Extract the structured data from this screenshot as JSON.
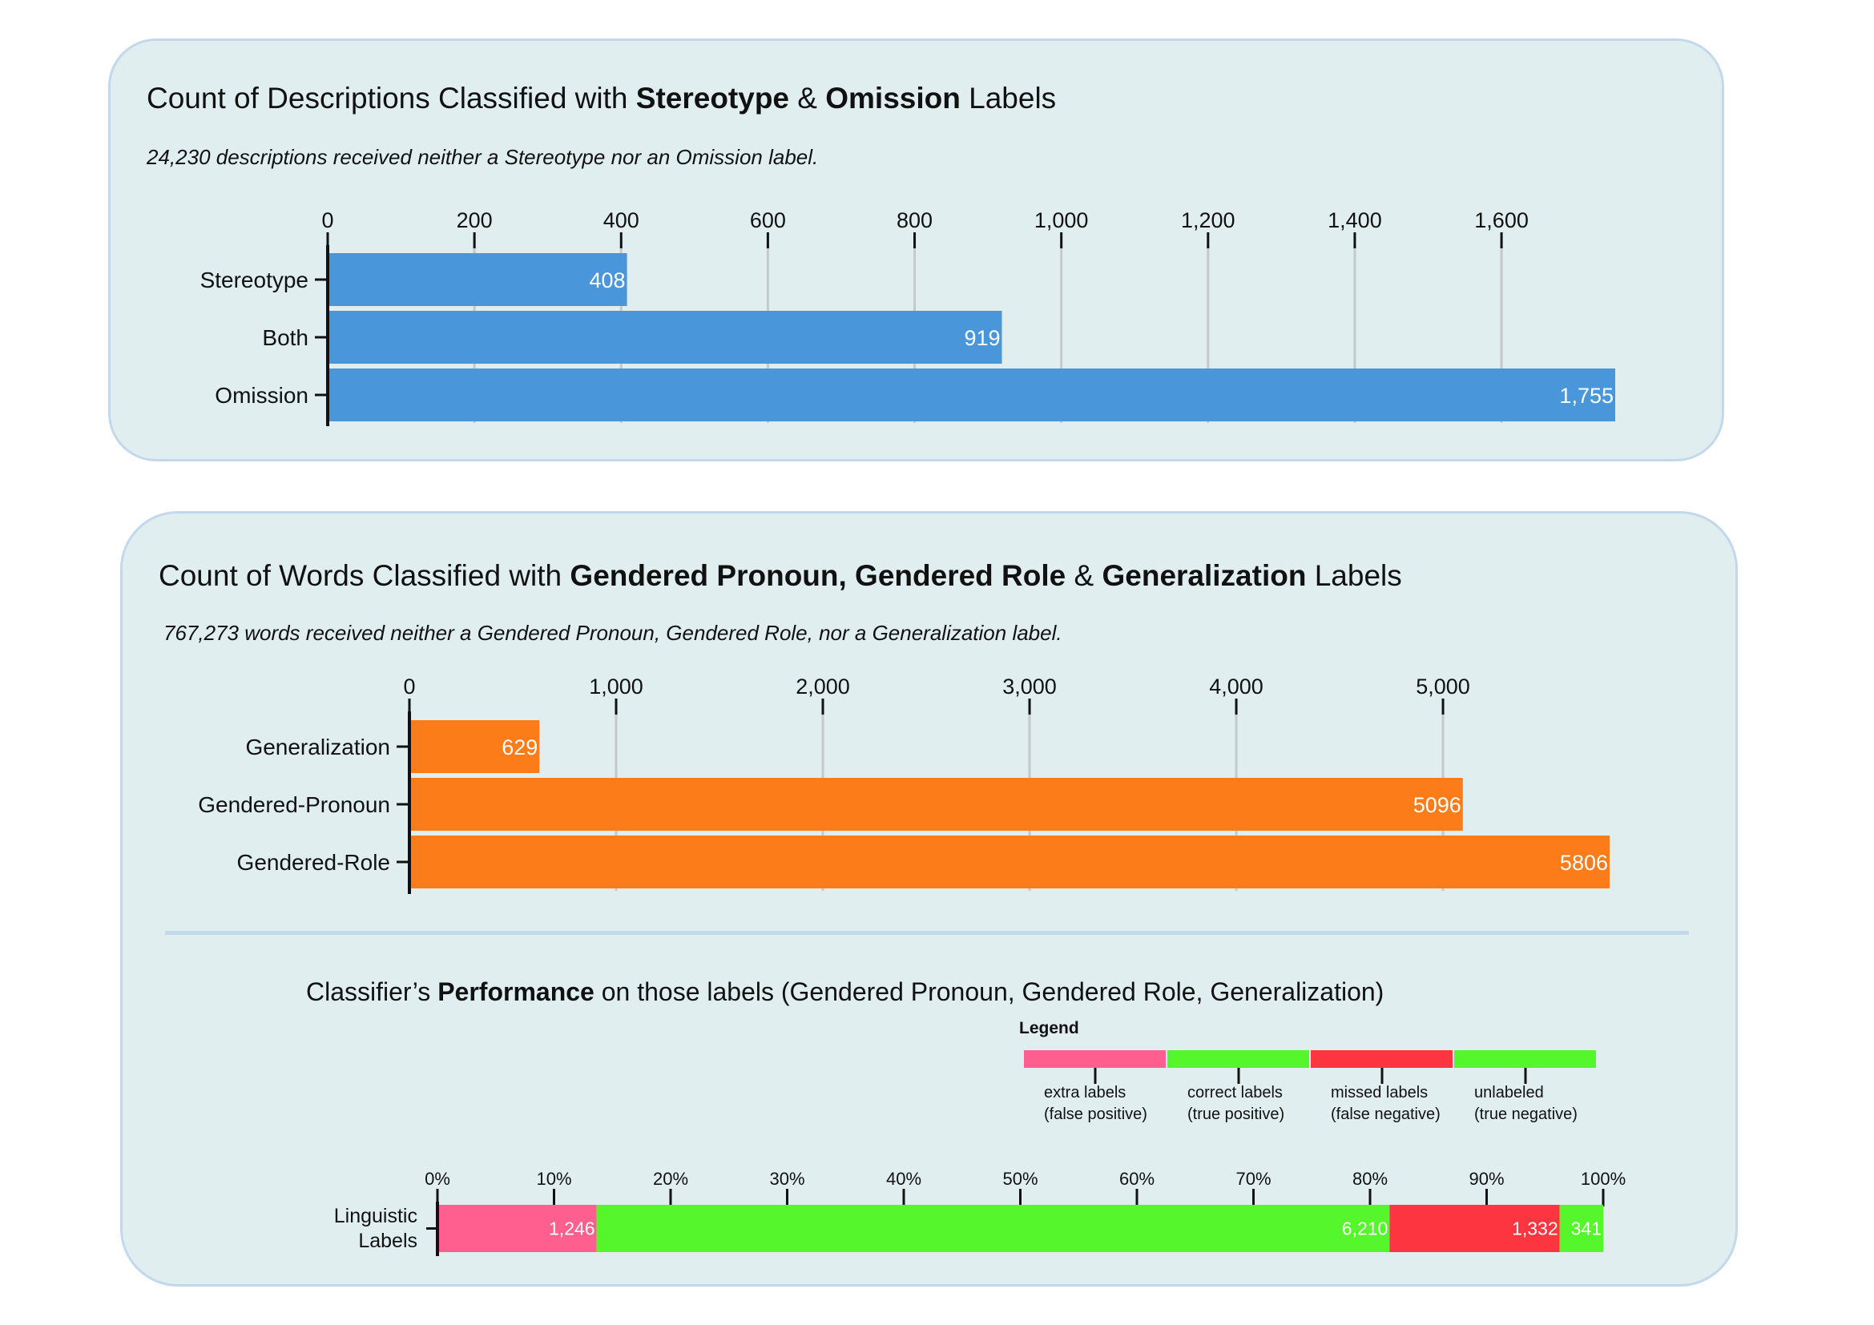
{
  "chart_data": [
    {
      "type": "bar",
      "orientation": "horizontal",
      "title_parts": [
        {
          "text": "Count of Descriptions Classified with ",
          "bold": false
        },
        {
          "text": "Stereotype",
          "bold": true
        },
        {
          "text": " & ",
          "bold": false
        },
        {
          "text": "Omission",
          "bold": true
        },
        {
          "text": " Labels",
          "bold": false
        }
      ],
      "subtitle": "24,230 descriptions received neither a Stereotype nor an Omission label.",
      "categories": [
        "Stereotype",
        "Both",
        "Omission"
      ],
      "values": [
        408,
        919,
        1755
      ],
      "value_labels": [
        "408",
        "919",
        "1,755"
      ],
      "xticks": [
        0,
        200,
        400,
        600,
        800,
        1000,
        1200,
        1400,
        1600
      ],
      "xtick_labels": [
        "0",
        "200",
        "400",
        "600",
        "800",
        "1,000",
        "1,200",
        "1,400",
        "1,600"
      ],
      "xlim": [
        0,
        1755
      ],
      "color": "#4a96db",
      "grid": true
    },
    {
      "type": "bar",
      "orientation": "horizontal",
      "title_parts": [
        {
          "text": "Count of Words Classified with ",
          "bold": false
        },
        {
          "text": "Gendered Pronoun, Gendered Role",
          "bold": true
        },
        {
          "text": " & ",
          "bold": false
        },
        {
          "text": "Generalization",
          "bold": true
        },
        {
          "text": " Labels",
          "bold": false
        }
      ],
      "subtitle": "767,273 words received neither a Gendered Pronoun, Gendered Role, nor a Generalization label.",
      "categories": [
        "Generalization",
        "Gendered-Pronoun",
        "Gendered-Role"
      ],
      "values": [
        629,
        5096,
        5806
      ],
      "value_labels": [
        "629",
        "5096",
        "5806"
      ],
      "xticks": [
        0,
        1000,
        2000,
        3000,
        4000,
        5000
      ],
      "xtick_labels": [
        "0",
        "1,000",
        "2,000",
        "3,000",
        "4,000",
        "5,000"
      ],
      "xlim": [
        0,
        5806
      ],
      "color": "#fb7c19",
      "grid": true
    },
    {
      "type": "stacked-bar",
      "orientation": "horizontal",
      "title_parts": [
        {
          "text": "Classifier’s ",
          "bold": false
        },
        {
          "text": "Performance",
          "bold": true
        },
        {
          "text": " on those labels (Gendered Pronoun, Gendered Role, Generalization)",
          "bold": false
        }
      ],
      "category_lines": [
        "Linguistic",
        "Labels"
      ],
      "series": [
        {
          "name": "extra labels (false positive)",
          "value": 1246,
          "label": "1,246",
          "color": "#ff5f8e"
        },
        {
          "name": "correct labels (true positive)",
          "value": 6210,
          "label": "6,210",
          "color": "#55f72c"
        },
        {
          "name": "missed labels (false negative)",
          "value": 1332,
          "label": "1,332",
          "color": "#fc3540"
        },
        {
          "name": "unlabeled (true negative)",
          "value": 341,
          "label": "341",
          "color": "#55f72c"
        }
      ],
      "xticks": [
        0,
        10,
        20,
        30,
        40,
        50,
        60,
        70,
        80,
        90,
        100
      ],
      "xtick_labels": [
        "0%",
        "10%",
        "20%",
        "30%",
        "40%",
        "50%",
        "60%",
        "70%",
        "80%",
        "90%",
        "100%"
      ],
      "xlim": [
        0,
        100
      ],
      "legend": {
        "title": "Legend",
        "items": [
          {
            "line1": "extra labels",
            "line2": "(false positive)",
            "color": "#ff5f8e"
          },
          {
            "line1": "correct labels",
            "line2": "(true positive)",
            "color": "#55f72c"
          },
          {
            "line1": "missed labels",
            "line2": "(false negative)",
            "color": "#fc3540"
          },
          {
            "line1": "unlabeled",
            "line2": "(true negative)",
            "color": "#55f72c"
          }
        ]
      }
    }
  ]
}
